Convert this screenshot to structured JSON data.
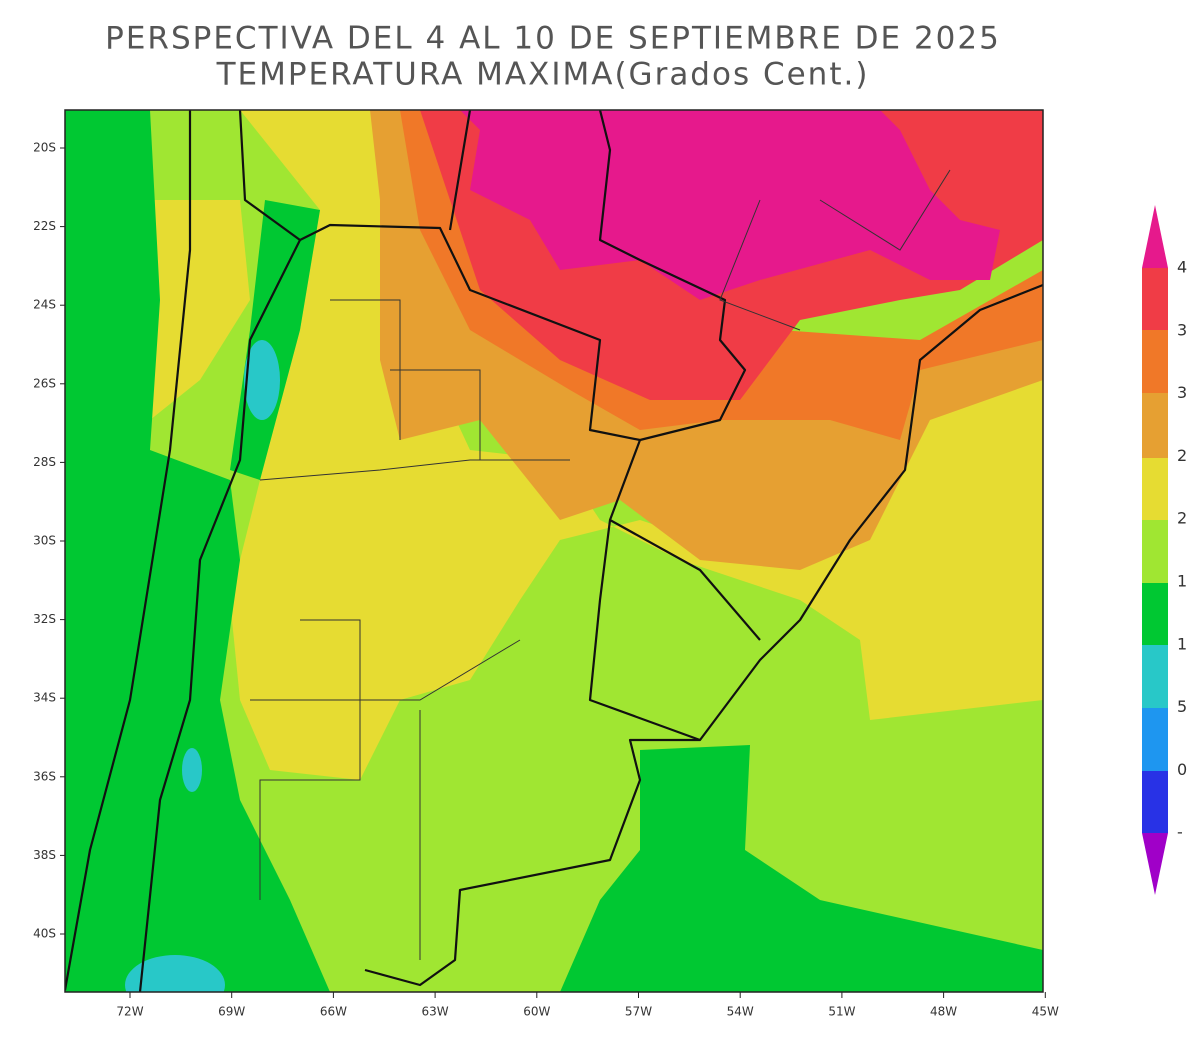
{
  "header": {
    "title": "PERSPECTIVA DEL 4 AL 10 DE SEPTIEMBRE DE 2025",
    "subtitle": "TEMPERATURA MAXIMA(Grados Cent.)"
  },
  "map": {
    "lat_labels": [
      "20S",
      "22S",
      "24S",
      "26S",
      "28S",
      "30S",
      "32S",
      "34S",
      "36S",
      "38S",
      "40S"
    ],
    "lon_labels": [
      "72W",
      "69W",
      "66W",
      "63W",
      "60W",
      "57W",
      "54W",
      "51W",
      "48W",
      "45W"
    ]
  },
  "colorbar": {
    "labels": [
      "4",
      "3",
      "3",
      "2",
      "2",
      "1",
      "1",
      "5",
      "0",
      "-"
    ]
  }
}
